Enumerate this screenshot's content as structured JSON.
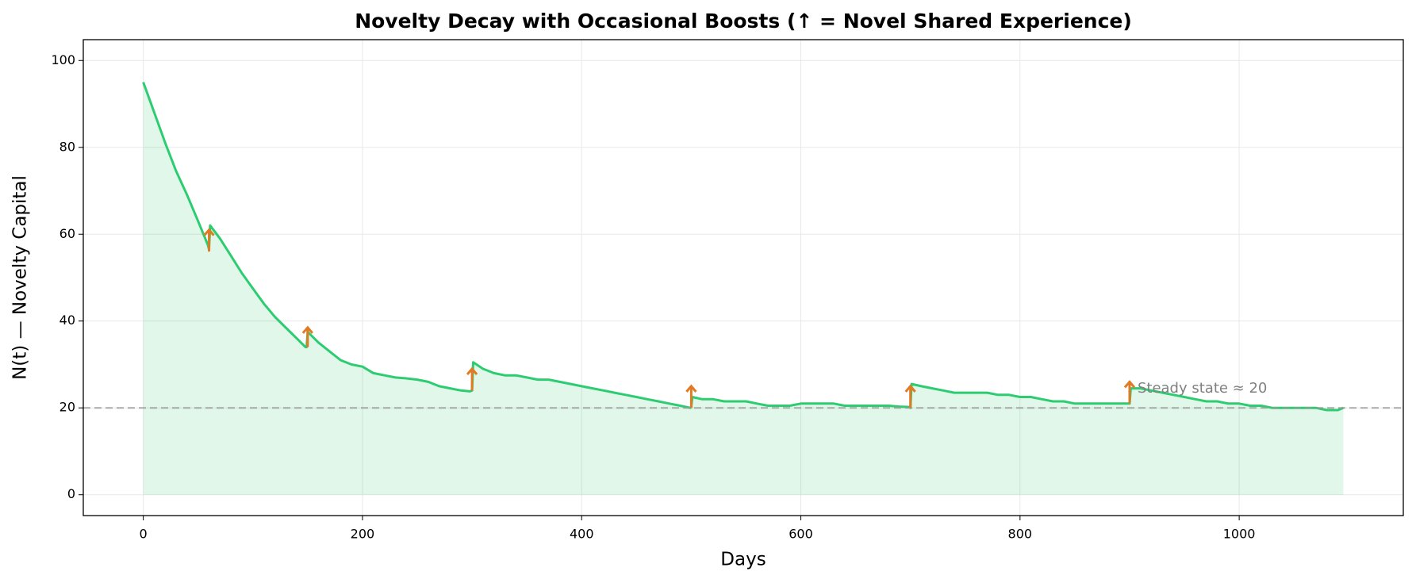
{
  "chart_data": {
    "type": "line",
    "title": "Novelty Decay with Occasional Boosts (↑ = Novel Shared Experience)",
    "xlabel": "Days",
    "ylabel": "N(t) — Novelty Capital",
    "x": [
      0,
      10,
      20,
      30,
      40,
      50,
      59,
      60,
      61,
      70,
      80,
      90,
      100,
      110,
      120,
      130,
      140,
      148,
      149,
      150,
      160,
      170,
      180,
      190,
      200,
      210,
      220,
      230,
      240,
      250,
      260,
      270,
      280,
      290,
      298,
      300,
      301,
      310,
      320,
      330,
      340,
      350,
      360,
      370,
      380,
      390,
      400,
      410,
      420,
      430,
      440,
      450,
      460,
      470,
      480,
      490,
      499,
      500,
      501,
      510,
      520,
      530,
      540,
      550,
      560,
      570,
      580,
      590,
      600,
      610,
      620,
      630,
      640,
      650,
      660,
      670,
      680,
      690,
      699,
      700,
      701,
      710,
      720,
      730,
      740,
      750,
      760,
      770,
      780,
      790,
      800,
      810,
      820,
      830,
      840,
      850,
      860,
      870,
      880,
      890,
      899,
      900,
      901,
      910,
      920,
      930,
      940,
      950,
      960,
      970,
      980,
      990,
      1000,
      1010,
      1020,
      1030,
      1040,
      1050,
      1060,
      1070,
      1080,
      1090,
      1095
    ],
    "values": [
      95,
      88,
      81,
      74.5,
      69,
      63,
      57.5,
      56.5,
      62,
      59,
      55,
      51,
      47.5,
      44,
      41,
      38.5,
      36,
      34,
      34,
      37.5,
      35,
      33,
      31,
      30,
      29.5,
      28,
      27.5,
      27,
      26.8,
      26.5,
      26,
      25,
      24.5,
      24,
      23.8,
      24,
      30.5,
      29,
      28,
      27.5,
      27.5,
      27,
      26.5,
      26.5,
      26,
      25.5,
      25,
      24.5,
      24,
      23.5,
      23,
      22.5,
      22,
      21.5,
      21,
      20.5,
      20,
      20.2,
      22.5,
      22,
      22,
      21.5,
      21.5,
      21.5,
      21,
      20.5,
      20.5,
      20.5,
      21,
      21,
      21,
      21,
      20.5,
      20.5,
      20.5,
      20.5,
      20.5,
      20.3,
      20.2,
      20,
      25.5,
      25,
      24.5,
      24,
      23.5,
      23.5,
      23.5,
      23.5,
      23,
      23,
      22.5,
      22.5,
      22,
      21.5,
      21.5,
      21,
      21,
      21,
      21,
      21,
      21,
      21,
      24.5,
      24.5,
      24,
      23.5,
      23,
      22.5,
      22,
      21.5,
      21.5,
      21,
      21,
      20.5,
      20.5,
      20,
      20,
      20,
      20,
      20,
      19.5,
      19.5,
      20
    ],
    "color": "#2ecc71",
    "boosts": [
      {
        "x": 60,
        "y_start": 56,
        "y_end": 61
      },
      {
        "x": 150,
        "y_start": 34,
        "y_end": 38.5
      },
      {
        "x": 300,
        "y_start": 24,
        "y_end": 29
      },
      {
        "x": 500,
        "y_start": 20,
        "y_end": 25
      },
      {
        "x": 700,
        "y_start": 20,
        "y_end": 25
      },
      {
        "x": 900,
        "y_start": 21,
        "y_end": 26
      }
    ],
    "boost_color": "#e07b24",
    "steady_state": 20,
    "steady_state_label": "Steady state ≈ 20",
    "xlim": [
      -54.75,
      1149.75
    ],
    "ylim": [
      -4.8,
      104.8
    ],
    "xticks": [
      0,
      200,
      400,
      600,
      800,
      1000
    ],
    "yticks": [
      0,
      20,
      40,
      60,
      80,
      100
    ],
    "grid": true
  }
}
